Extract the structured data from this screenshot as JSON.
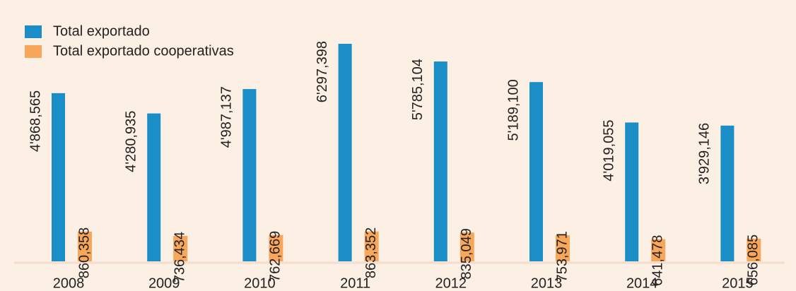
{
  "chart_data": {
    "type": "bar",
    "categories": [
      "2008",
      "2009",
      "2010",
      "2011",
      "2012",
      "2013",
      "2014",
      "2015"
    ],
    "series": [
      {
        "name": "Total exportado",
        "color": "#1b8ec8",
        "values": [
          4868565,
          4280935,
          4987137,
          6297398,
          5785104,
          5189100,
          4019055,
          3929146
        ],
        "value_labels": [
          "4'868,565",
          "4'280,935",
          "4'987,137",
          "6'297,398",
          "5'785,104",
          "5'189,100",
          "4'019,055",
          "3'929,146"
        ]
      },
      {
        "name": "Total exportado cooperativas",
        "color": "#f7a65a",
        "values": [
          860358,
          736434,
          762669,
          863352,
          835049,
          753971,
          641478,
          656085
        ],
        "value_labels": [
          "860,358",
          "736,434",
          "762,669",
          "863,352",
          "835,049",
          "753,971",
          "641,478",
          "656,085"
        ]
      }
    ]
  }
}
